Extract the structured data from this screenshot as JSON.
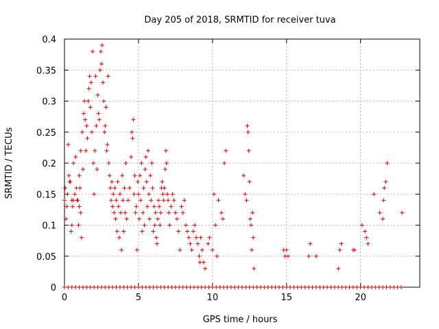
{
  "chart_data": {
    "type": "scatter",
    "title": "Day 205 of 2018, SRMTID for receiver tuva",
    "xlabel": "GPS time / hours",
    "ylabel": "SRMTID / TECUs",
    "xlim": [
      0,
      24
    ],
    "ylim": [
      0,
      0.4
    ],
    "xticks": [
      "0",
      "5",
      "10",
      "15",
      "20"
    ],
    "yticks": [
      "0",
      "0.05",
      "0.1",
      "0.15",
      "0.2",
      "0.25",
      "0.3",
      "0.35",
      "0.4"
    ],
    "grid": true,
    "marker": "plus",
    "color": "#d00000",
    "points": [
      [
        0.0,
        0.14
      ],
      [
        0.05,
        0.16
      ],
      [
        0.1,
        0.11
      ],
      [
        0.15,
        0.13
      ],
      [
        0.2,
        0.15
      ],
      [
        0.25,
        0.23
      ],
      [
        0.3,
        0.18
      ],
      [
        0.35,
        0.17
      ],
      [
        0.4,
        0.17
      ],
      [
        0.45,
        0.09
      ],
      [
        0.5,
        0.14
      ],
      [
        0.5,
        0.1
      ],
      [
        0.55,
        0.13
      ],
      [
        0.6,
        0.14
      ],
      [
        0.6,
        0.2
      ],
      [
        0.7,
        0.15
      ],
      [
        0.75,
        0.21
      ],
      [
        0.8,
        0.16
      ],
      [
        0.85,
        0.14
      ],
      [
        0.9,
        0.14
      ],
      [
        0.95,
        0.1
      ],
      [
        1.0,
        0.18
      ],
      [
        1.0,
        0.13
      ],
      [
        1.05,
        0.16
      ],
      [
        1.1,
        0.22
      ],
      [
        1.1,
        0.12
      ],
      [
        1.15,
        0.08
      ],
      [
        1.2,
        0.25
      ],
      [
        1.25,
        0.19
      ],
      [
        1.3,
        0.28
      ],
      [
        1.35,
        0.3
      ],
      [
        1.4,
        0.27
      ],
      [
        1.45,
        0.22
      ],
      [
        1.5,
        0.26
      ],
      [
        1.55,
        0.24
      ],
      [
        1.6,
        0.3
      ],
      [
        1.65,
        0.32
      ],
      [
        1.7,
        0.34
      ],
      [
        1.75,
        0.29
      ],
      [
        1.8,
        0.33
      ],
      [
        1.85,
        0.25
      ],
      [
        1.9,
        0.38
      ],
      [
        1.95,
        0.2
      ],
      [
        2.0,
        0.15
      ],
      [
        2.05,
        0.22
      ],
      [
        2.1,
        0.34
      ],
      [
        2.15,
        0.26
      ],
      [
        2.2,
        0.19
      ],
      [
        2.25,
        0.31
      ],
      [
        2.3,
        0.28
      ],
      [
        2.35,
        0.27
      ],
      [
        2.4,
        0.35
      ],
      [
        2.45,
        0.38
      ],
      [
        2.5,
        0.36
      ],
      [
        2.55,
        0.39
      ],
      [
        2.6,
        0.33
      ],
      [
        2.65,
        0.3
      ],
      [
        2.7,
        0.25
      ],
      [
        2.75,
        0.26
      ],
      [
        2.8,
        0.29
      ],
      [
        2.85,
        0.22
      ],
      [
        2.9,
        0.23
      ],
      [
        2.95,
        0.34
      ],
      [
        3.0,
        0.2
      ],
      [
        3.05,
        0.18
      ],
      [
        3.1,
        0.16
      ],
      [
        3.15,
        0.14
      ],
      [
        3.2,
        0.17
      ],
      [
        3.25,
        0.13
      ],
      [
        3.3,
        0.15
      ],
      [
        3.35,
        0.12
      ],
      [
        3.4,
        0.16
      ],
      [
        3.45,
        0.11
      ],
      [
        3.5,
        0.14
      ],
      [
        3.55,
        0.09
      ],
      [
        3.6,
        0.17
      ],
      [
        3.65,
        0.13
      ],
      [
        3.7,
        0.08
      ],
      [
        3.75,
        0.15
      ],
      [
        3.8,
        0.12
      ],
      [
        3.85,
        0.06
      ],
      [
        3.9,
        0.18
      ],
      [
        3.95,
        0.14
      ],
      [
        4.0,
        0.09
      ],
      [
        4.05,
        0.16
      ],
      [
        4.1,
        0.12
      ],
      [
        4.15,
        0.2
      ],
      [
        4.2,
        0.11
      ],
      [
        4.3,
        0.14
      ],
      [
        4.4,
        0.16
      ],
      [
        4.5,
        0.21
      ],
      [
        4.55,
        0.25
      ],
      [
        4.6,
        0.24
      ],
      [
        4.65,
        0.27
      ],
      [
        4.7,
        0.15
      ],
      [
        4.75,
        0.18
      ],
      [
        4.8,
        0.12
      ],
      [
        4.85,
        0.13
      ],
      [
        4.9,
        0.06
      ],
      [
        4.95,
        0.17
      ],
      [
        5.0,
        0.15
      ],
      [
        5.05,
        0.11
      ],
      [
        5.1,
        0.18
      ],
      [
        5.15,
        0.14
      ],
      [
        5.2,
        0.2
      ],
      [
        5.25,
        0.09
      ],
      [
        5.3,
        0.12
      ],
      [
        5.35,
        0.16
      ],
      [
        5.4,
        0.1
      ],
      [
        5.45,
        0.19
      ],
      [
        5.5,
        0.21
      ],
      [
        5.55,
        0.17
      ],
      [
        5.6,
        0.13
      ],
      [
        5.65,
        0.22
      ],
      [
        5.7,
        0.15
      ],
      [
        5.75,
        0.11
      ],
      [
        5.8,
        0.18
      ],
      [
        5.85,
        0.14
      ],
      [
        5.9,
        0.2
      ],
      [
        5.95,
        0.16
      ],
      [
        6.0,
        0.09
      ],
      [
        6.05,
        0.13
      ],
      [
        6.1,
        0.1
      ],
      [
        6.15,
        0.12
      ],
      [
        6.2,
        0.08
      ],
      [
        6.25,
        0.07
      ],
      [
        6.3,
        0.11
      ],
      [
        6.35,
        0.14
      ],
      [
        6.4,
        0.13
      ],
      [
        6.45,
        0.1
      ],
      [
        6.5,
        0.12
      ],
      [
        6.55,
        0.16
      ],
      [
        6.6,
        0.17
      ],
      [
        6.65,
        0.15
      ],
      [
        6.7,
        0.14
      ],
      [
        6.75,
        0.16
      ],
      [
        6.8,
        0.19
      ],
      [
        6.85,
        0.22
      ],
      [
        6.9,
        0.2
      ],
      [
        6.95,
        0.15
      ],
      [
        7.0,
        0.14
      ],
      [
        7.05,
        0.12
      ],
      [
        7.1,
        0.1
      ],
      [
        7.2,
        0.13
      ],
      [
        7.3,
        0.15
      ],
      [
        7.4,
        0.14
      ],
      [
        7.5,
        0.12
      ],
      [
        7.6,
        0.11
      ],
      [
        7.7,
        0.09
      ],
      [
        7.8,
        0.06
      ],
      [
        7.9,
        0.13
      ],
      [
        8.0,
        0.12
      ],
      [
        8.1,
        0.14
      ],
      [
        8.2,
        0.1
      ],
      [
        8.3,
        0.09
      ],
      [
        8.4,
        0.08
      ],
      [
        8.5,
        0.07
      ],
      [
        8.6,
        0.06
      ],
      [
        8.7,
        0.09
      ],
      [
        8.8,
        0.1
      ],
      [
        8.9,
        0.08
      ],
      [
        9.0,
        0.07
      ],
      [
        9.1,
        0.05
      ],
      [
        9.15,
        0.04
      ],
      [
        9.2,
        0.08
      ],
      [
        9.3,
        0.06
      ],
      [
        9.4,
        0.04
      ],
      [
        9.5,
        0.03
      ],
      [
        9.7,
        0.07
      ],
      [
        9.8,
        0.08
      ],
      [
        10.0,
        0.06
      ],
      [
        10.1,
        0.15
      ],
      [
        10.2,
        0.1
      ],
      [
        10.3,
        0.05
      ],
      [
        10.4,
        0.14
      ],
      [
        10.6,
        0.12
      ],
      [
        10.7,
        0.11
      ],
      [
        10.8,
        0.2
      ],
      [
        10.9,
        0.22
      ],
      [
        12.1,
        0.18
      ],
      [
        12.2,
        0.15
      ],
      [
        12.3,
        0.14
      ],
      [
        12.35,
        0.26
      ],
      [
        12.4,
        0.25
      ],
      [
        12.45,
        0.22
      ],
      [
        12.5,
        0.17
      ],
      [
        12.55,
        0.11
      ],
      [
        12.6,
        0.1
      ],
      [
        12.65,
        0.06
      ],
      [
        12.7,
        0.12
      ],
      [
        12.75,
        0.08
      ],
      [
        12.8,
        0.03
      ],
      [
        14.8,
        0.06
      ],
      [
        14.9,
        0.05
      ],
      [
        15.0,
        0.06
      ],
      [
        15.1,
        0.05
      ],
      [
        16.5,
        0.05
      ],
      [
        16.6,
        0.07
      ],
      [
        17.0,
        0.05
      ],
      [
        18.5,
        0.03
      ],
      [
        18.6,
        0.06
      ],
      [
        18.7,
        0.07
      ],
      [
        19.5,
        0.06
      ],
      [
        19.6,
        0.06
      ],
      [
        20.1,
        0.1
      ],
      [
        20.3,
        0.09
      ],
      [
        20.4,
        0.08
      ],
      [
        20.5,
        0.07
      ],
      [
        20.9,
        0.15
      ],
      [
        21.3,
        0.12
      ],
      [
        21.5,
        0.11
      ],
      [
        21.55,
        0.14
      ],
      [
        21.6,
        0.16
      ],
      [
        21.7,
        0.17
      ],
      [
        21.8,
        0.2
      ],
      [
        22.8,
        0.12
      ]
    ],
    "zero_points_x": [
      0.0,
      0.25,
      0.5,
      0.75,
      1.0,
      1.25,
      1.5,
      1.75,
      2.0,
      2.25,
      2.5,
      2.75,
      3.0,
      3.25,
      3.5,
      3.75,
      4.0,
      4.25,
      4.5,
      4.75,
      5.0,
      5.25,
      5.5,
      5.75,
      6.0,
      6.25,
      6.5,
      6.75,
      7.0,
      7.25,
      7.5,
      7.75,
      8.0,
      8.25,
      8.5,
      8.75,
      9.0,
      9.25,
      9.5,
      9.75,
      10.0,
      10.25,
      10.5,
      10.75,
      11.0,
      11.25,
      11.5,
      11.75,
      12.0,
      12.25,
      12.5,
      12.75,
      13.0,
      13.25,
      13.5,
      13.75,
      14.0,
      14.25,
      14.5,
      14.75,
      15.0,
      15.25,
      15.5,
      15.75,
      16.0,
      16.25,
      16.5,
      16.75,
      17.0,
      17.25,
      17.5,
      17.75,
      18.0,
      18.25,
      18.5,
      18.75,
      19.0,
      19.25,
      19.5,
      19.75,
      20.0,
      20.25,
      20.5,
      20.75,
      21.0,
      21.25,
      21.5,
      21.75,
      22.0,
      22.25,
      22.5,
      22.75
    ]
  }
}
